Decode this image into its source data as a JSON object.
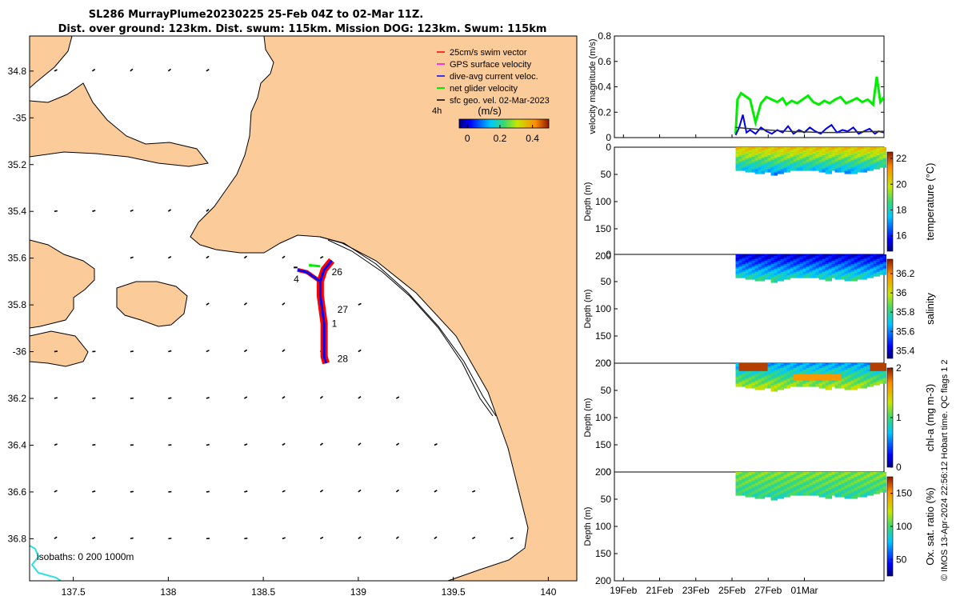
{
  "title": {
    "line1": "SL286 MurrayPlume20230225 25-Feb 04Z to 02-Mar 11Z.",
    "line2": "Dist. over ground: 123km. Dist. swum: 115km. Mission DOG: 123km. Swum: 115km"
  },
  "colors": {
    "land": "#fbcb9a",
    "sea": "#ffffff",
    "isobath_200": "#2de0e0"
  },
  "chart_data": [
    {
      "id": "map",
      "type": "scatter",
      "xlim": [
        137.27,
        140.15
      ],
      "ylim": [
        -36.98,
        -34.65
      ],
      "x_ticks": [
        137.5,
        138,
        138.5,
        139,
        139.5,
        140
      ],
      "x_tick_labels": [
        "137.5",
        "138",
        "138.5",
        "139",
        "139.5",
        "140"
      ],
      "y_ticks": [
        -34.8,
        -35,
        -35.2,
        -35.4,
        -35.6,
        -35.8,
        -36,
        -36.2,
        -36.4,
        -36.6,
        -36.8
      ],
      "y_tick_labels": [
        "34.8",
        "-35",
        "35.2",
        "35.4",
        "35.6",
        "35.8",
        "-36",
        "36.2",
        "36.4",
        "36.6",
        "36.8"
      ],
      "legend": [
        {
          "label": "25cm/s swim vector",
          "color": "#ff0000"
        },
        {
          "label": "GPS surface velocity",
          "color": "#ff00ff"
        },
        {
          "label": "dive-avg current veloc.",
          "color": "#0000ff"
        },
        {
          "label": "net glider velocity",
          "color": "#00ee00"
        },
        {
          "label": "sfc geo. vel. 02-Mar-2023",
          "color": "#000000"
        }
      ],
      "legend_note": "4h",
      "colorbar": {
        "label": "(m/s)",
        "ticks": [
          0,
          0.2,
          0.4
        ],
        "tick_labels": [
          "0",
          "0.2",
          "0.4"
        ],
        "range": [
          -0.05,
          0.5
        ]
      },
      "isobath_text": "isobaths: 0   200  1000m",
      "track": [
        [
          138.86,
          -35.61
        ],
        [
          138.82,
          -35.65
        ],
        [
          138.8,
          -35.7
        ],
        [
          138.8,
          -35.76
        ],
        [
          138.81,
          -35.82
        ],
        [
          138.82,
          -35.88
        ],
        [
          138.82,
          -35.95
        ],
        [
          138.82,
          -36.02
        ],
        [
          138.83,
          -36.05
        ]
      ],
      "track_branch": [
        [
          138.8,
          -35.7
        ],
        [
          138.73,
          -35.66
        ],
        [
          138.68,
          -35.65
        ]
      ],
      "day_labels": [
        {
          "text": "4",
          "x": 138.66,
          "y": -35.69
        },
        {
          "text": "26",
          "x": 138.86,
          "y": -35.66
        },
        {
          "text": "27",
          "x": 138.89,
          "y": -35.82
        },
        {
          "text": "1",
          "x": 138.86,
          "y": -35.88
        },
        {
          "text": "28",
          "x": 138.89,
          "y": -36.03
        }
      ]
    },
    {
      "id": "velocity",
      "type": "line",
      "ylabel": "velocity magnitude (m/s)",
      "ylim": [
        0,
        0.8
      ],
      "y_ticks": [
        0,
        0.2,
        0.4,
        0.6,
        0.8
      ],
      "y_tick_labels": [
        "0",
        "0.2",
        "0.4",
        "0.6",
        "0.8"
      ],
      "xlim": [
        18.5,
        33.4
      ],
      "series": [
        {
          "name": "net glider velocity",
          "color": "#00ee00",
          "x": [
            25.2,
            25.3,
            25.5,
            25.7,
            26.0,
            26.3,
            26.6,
            26.9,
            27.2,
            27.5,
            27.8,
            28.0,
            28.3,
            28.6,
            28.9,
            29.2,
            29.5,
            29.8,
            30.1,
            30.4,
            30.7,
            31.0,
            31.3,
            31.6,
            31.9,
            32.2,
            32.5,
            32.8,
            33.0,
            33.2,
            33.4
          ],
          "y": [
            0.03,
            0.3,
            0.35,
            0.33,
            0.3,
            0.12,
            0.27,
            0.32,
            0.3,
            0.28,
            0.31,
            0.26,
            0.29,
            0.27,
            0.3,
            0.33,
            0.28,
            0.26,
            0.29,
            0.27,
            0.3,
            0.32,
            0.27,
            0.29,
            0.31,
            0.28,
            0.3,
            0.26,
            0.48,
            0.28,
            0.32
          ]
        },
        {
          "name": "dive-avg current veloc.",
          "color": "#0000ee",
          "x": [
            25.2,
            25.4,
            25.6,
            25.8,
            26.0,
            26.3,
            26.6,
            26.9,
            27.2,
            27.5,
            27.8,
            28.1,
            28.4,
            28.7,
            29.0,
            29.3,
            29.6,
            29.9,
            30.2,
            30.5,
            30.8,
            31.1,
            31.4,
            31.7,
            32.0,
            32.3,
            32.6,
            32.9,
            33.1,
            33.4
          ],
          "y": [
            0.02,
            0.08,
            0.18,
            0.04,
            0.06,
            0.03,
            0.08,
            0.05,
            0.03,
            0.06,
            0.04,
            0.09,
            0.03,
            0.06,
            0.04,
            0.08,
            0.05,
            0.03,
            0.07,
            0.1,
            0.04,
            0.06,
            0.05,
            0.08,
            0.03,
            0.05,
            0.07,
            0.03,
            0.05,
            0.04
          ]
        },
        {
          "name": "surface geostrophic",
          "color": "#333333",
          "x": [
            25.2,
            26.0,
            27.0,
            28.0,
            29.0,
            30.0,
            31.0,
            32.0,
            33.4
          ],
          "y": [
            0.08,
            0.07,
            0.06,
            0.05,
            0.045,
            0.04,
            0.04,
            0.045,
            0.05
          ]
        }
      ]
    },
    {
      "id": "temperature",
      "type": "heatmap",
      "ylabel": "Depth (m)",
      "cblabel": "temperature (°C)",
      "clim": [
        14.8,
        22.5
      ],
      "y_tick_labels": [
        "0",
        "50",
        "100",
        "150",
        "200"
      ],
      "cb_ticks": [
        16,
        18,
        20,
        22
      ],
      "cb_tick_labels": [
        "16",
        "18",
        "20",
        "22"
      ],
      "surface_value": 20.5,
      "deep_value": 17.5
    },
    {
      "id": "salinity",
      "type": "heatmap",
      "ylabel": "Depth (m)",
      "cblabel": "salinity",
      "clim": [
        35.32,
        36.35
      ],
      "y_tick_labels": [
        "0",
        "50",
        "100",
        "150",
        "200"
      ],
      "cb_ticks": [
        35.4,
        35.6,
        35.8,
        36,
        36.2
      ],
      "cb_tick_labels": [
        "35.4",
        "35.6",
        "35.8",
        "36",
        "36.2"
      ],
      "surface_value": 35.4,
      "deep_value": 35.75
    },
    {
      "id": "chla",
      "type": "heatmap",
      "ylabel": "Depth (m)",
      "cblabel": "chl-a (mg m-3)",
      "clim": [
        0,
        2
      ],
      "y_tick_labels": [
        "0",
        "50",
        "100",
        "150",
        "200"
      ],
      "cb_ticks": [
        0,
        1,
        2
      ],
      "cb_tick_labels": [
        "0",
        "1",
        "2"
      ],
      "surface_value": 0.6,
      "deep_value": 1.2
    },
    {
      "id": "oxygen",
      "type": "heatmap",
      "ylabel": "Depth (m)",
      "cblabel": "Ox. sat. ratio (%)",
      "clim": [
        25,
        175
      ],
      "y_tick_labels": [
        "0",
        "50",
        "100",
        "150",
        "200"
      ],
      "cb_ticks": [
        50,
        100,
        150
      ],
      "cb_tick_labels": [
        "50",
        "100",
        "150"
      ],
      "surface_value": 110,
      "deep_value": 95
    }
  ],
  "time_axis": {
    "xlim": [
      18.5,
      33.4
    ],
    "ticks": [
      19,
      21,
      23,
      25,
      27,
      29
    ],
    "tick_labels": [
      "19Feb",
      "21Feb",
      "23Feb",
      "25Feb",
      "27Feb",
      "01Mar"
    ],
    "data_start": 25.2,
    "data_end": 33.4
  },
  "footer": "© IMOS 13-Apr-2024 22:56:12 Hobart time. QC flags 1  2"
}
